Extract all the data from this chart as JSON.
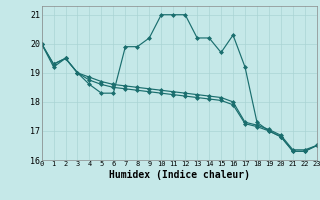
{
  "xlabel": "Humidex (Indice chaleur)",
  "bg_color": "#c5e8e8",
  "grid_color": "#aad4d4",
  "line_color": "#1a6e6e",
  "xlim": [
    0,
    23
  ],
  "ylim": [
    16,
    21.3
  ],
  "yticks": [
    16,
    17,
    18,
    19,
    20,
    21
  ],
  "xticks": [
    0,
    1,
    2,
    3,
    4,
    5,
    6,
    7,
    8,
    9,
    10,
    11,
    12,
    13,
    14,
    15,
    16,
    17,
    18,
    19,
    20,
    21,
    22,
    23
  ],
  "series1": [
    20.0,
    19.2,
    19.5,
    19.0,
    18.6,
    18.3,
    18.3,
    19.9,
    19.9,
    20.2,
    21.0,
    21.0,
    21.0,
    20.2,
    20.2,
    19.7,
    20.3,
    19.2,
    17.3,
    17.0,
    16.8,
    16.3,
    16.3,
    16.5
  ],
  "series2": [
    20.0,
    19.3,
    19.5,
    19.0,
    18.85,
    18.7,
    18.6,
    18.55,
    18.5,
    18.45,
    18.4,
    18.35,
    18.3,
    18.25,
    18.2,
    18.15,
    18.0,
    17.3,
    17.2,
    17.05,
    16.85,
    16.35,
    16.35,
    16.5
  ],
  "series3": [
    20.0,
    19.3,
    19.5,
    19.0,
    18.75,
    18.6,
    18.5,
    18.45,
    18.4,
    18.35,
    18.3,
    18.25,
    18.2,
    18.15,
    18.1,
    18.05,
    17.9,
    17.25,
    17.15,
    17.0,
    16.8,
    16.3,
    16.3,
    16.5
  ]
}
